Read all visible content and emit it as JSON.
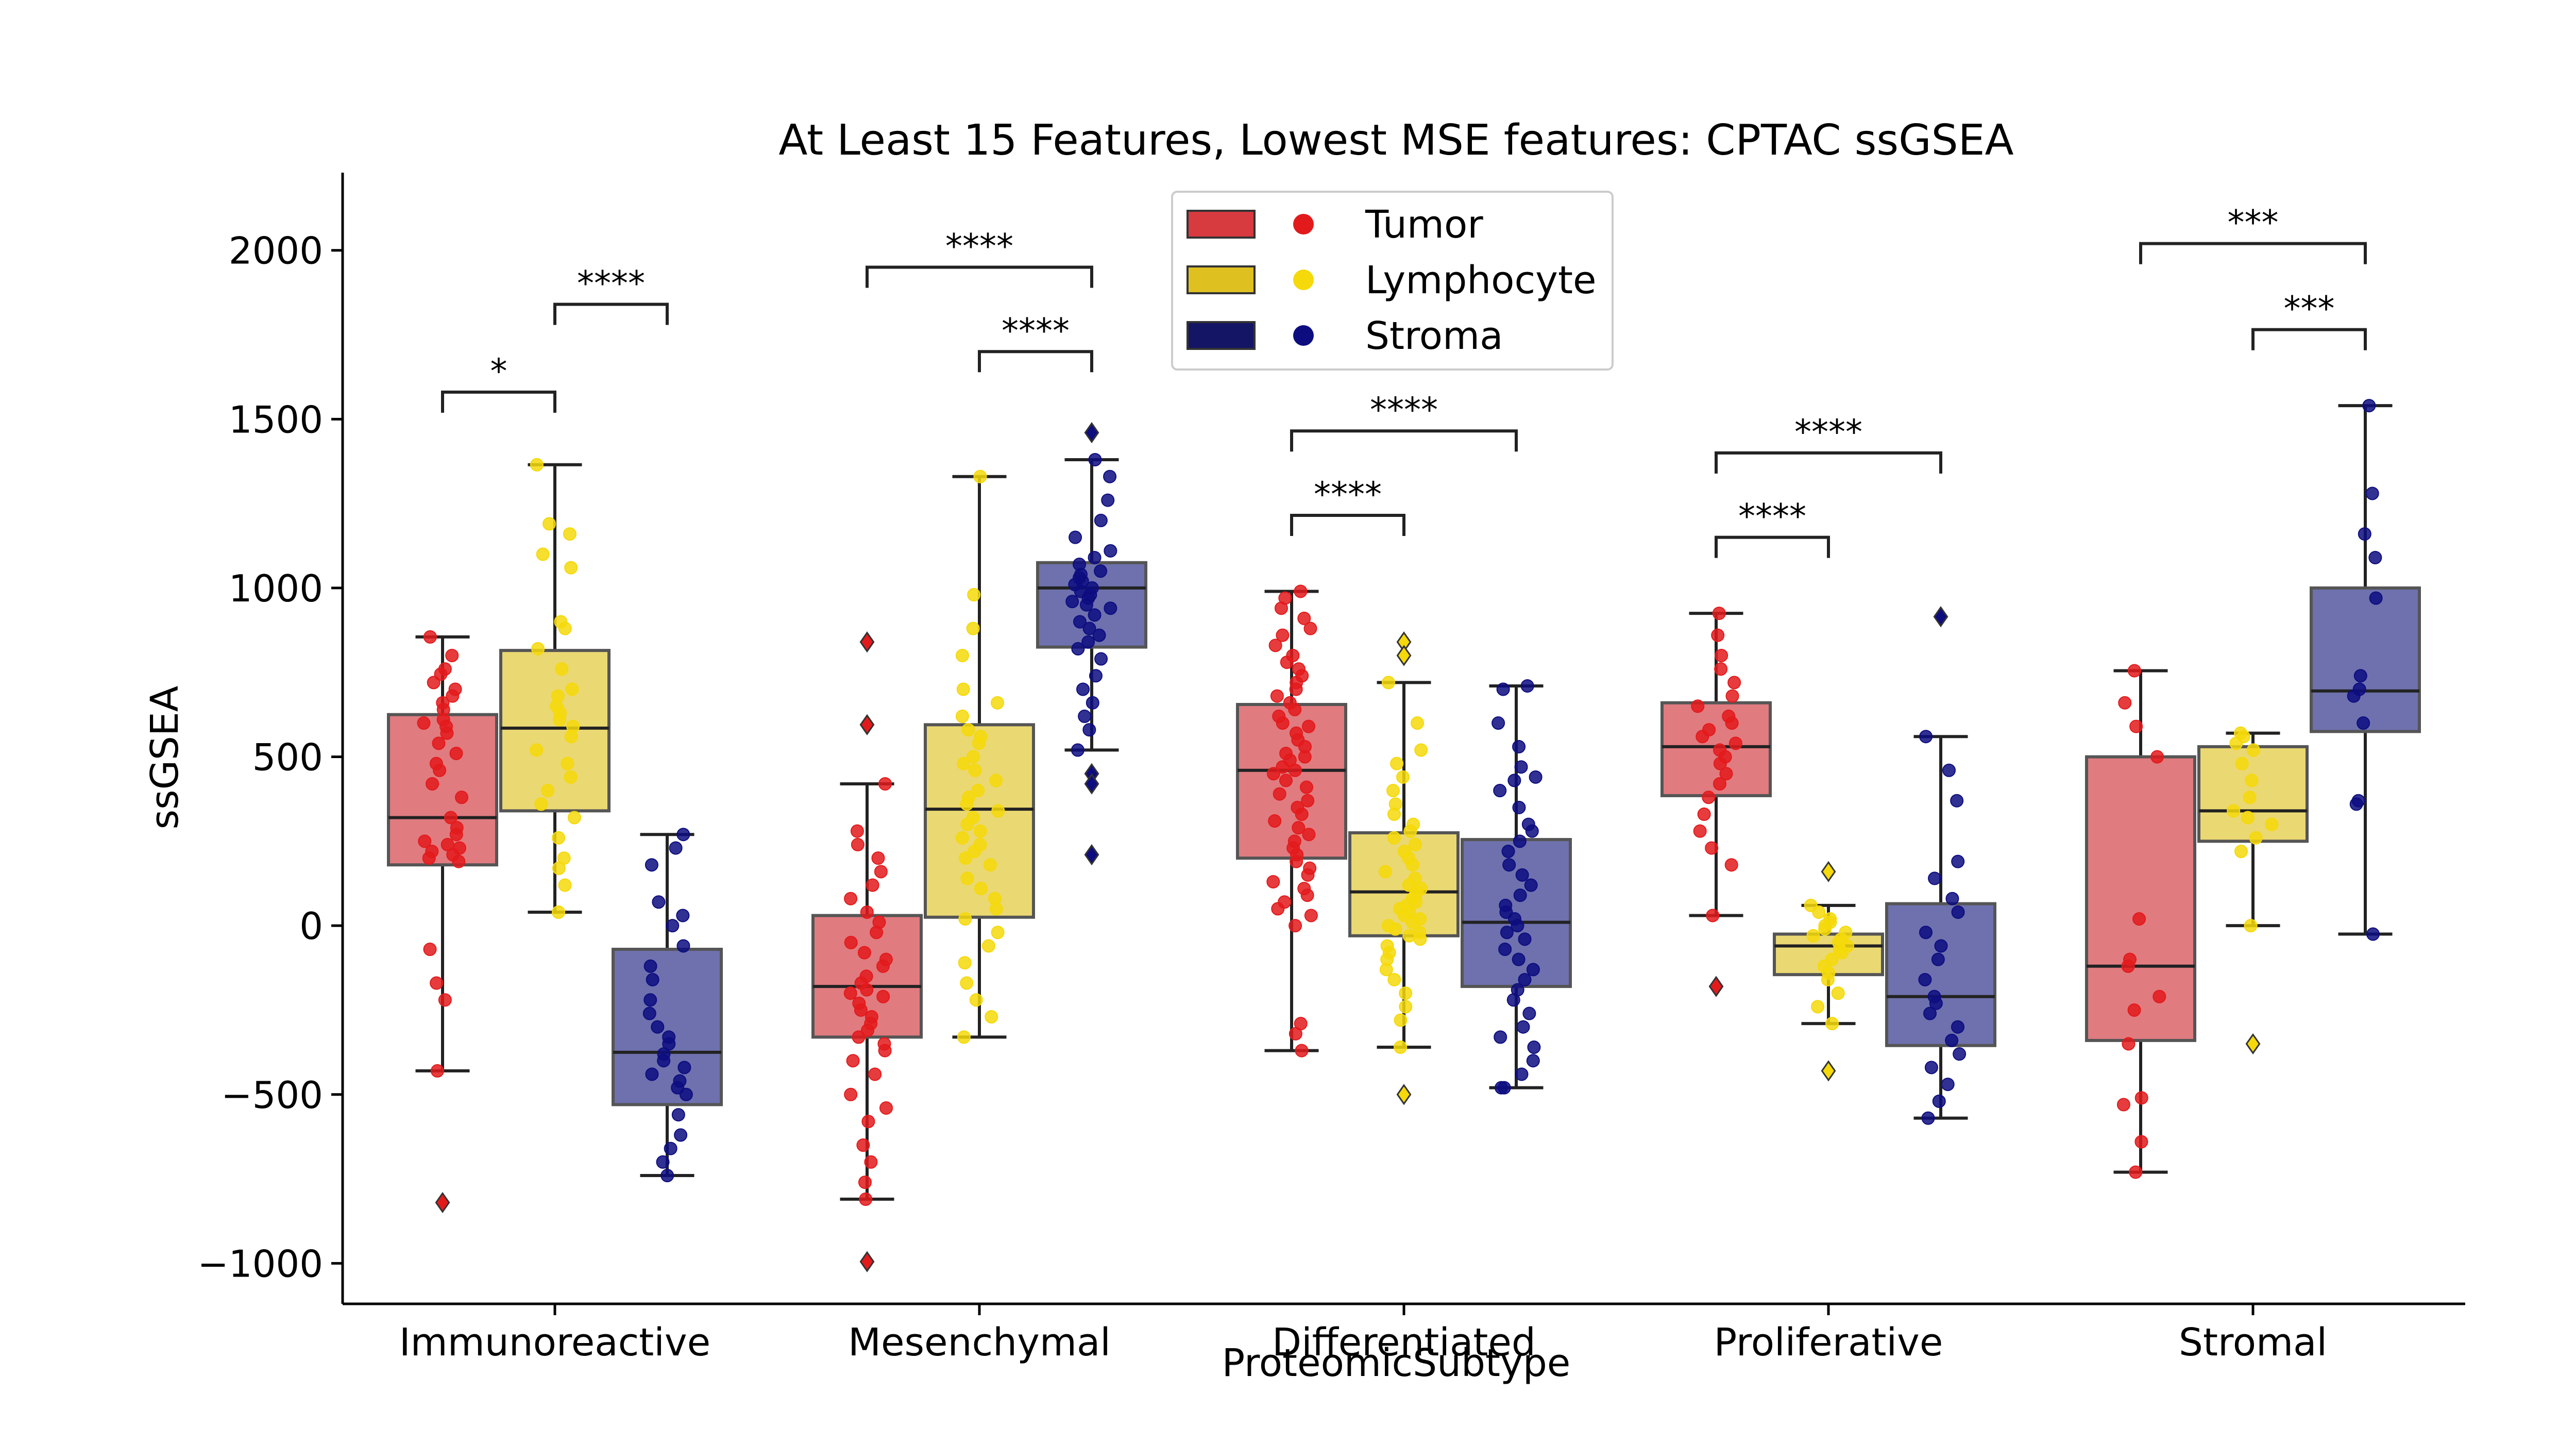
{
  "chart_data": {
    "type": "box",
    "title": "At Least 15 Features, Lowest MSE features: CPTAC ssGSEA",
    "xlabel": "ProteomicSubtype",
    "ylabel": "ssGSEA",
    "ylim": [
      -1120,
      2230
    ],
    "yticks": [
      -1000,
      -500,
      0,
      500,
      1000,
      1500,
      2000
    ],
    "ytick_labels": [
      "−1000",
      "−500",
      "0",
      "500",
      "1000",
      "1500",
      "2000"
    ],
    "categories": [
      "Immunoreactive",
      "Mesenchymal",
      "Differentiated",
      "Proliferative",
      "Stromal"
    ],
    "legend": {
      "placement": "upper-center",
      "entries": [
        {
          "name": "Tumor",
          "box_color": "#d73a3f",
          "dot_color": "#e31a1c"
        },
        {
          "name": "Lymphocyte",
          "box_color": "#dfc021",
          "dot_color": "#f5d90a"
        },
        {
          "name": "Stroma",
          "box_color": "#141565",
          "dot_color": "#0d0d80"
        }
      ]
    },
    "series": [
      {
        "name": "Tumor",
        "box_fill": "#e07b80",
        "dot_color": "#e31a1c",
        "boxes": [
          {
            "q1": 180,
            "median": 320,
            "q3": 625,
            "lower": -430,
            "upper": 855,
            "outliers": [
              -820
            ],
            "points": [
              855,
              800,
              760,
              745,
              720,
              700,
              680,
              660,
              640,
              610,
              600,
              590,
              570,
              540,
              510,
              480,
              460,
              420,
              380,
              320,
              290,
              270,
              250,
              240,
              230,
              220,
              210,
              200,
              190,
              -70,
              -170,
              -220,
              -430
            ]
          },
          {
            "q1": -330,
            "median": -180,
            "q3": 30,
            "lower": -810,
            "upper": 420,
            "outliers": [
              840,
              595,
              -995
            ],
            "points": [
              420,
              280,
              240,
              200,
              160,
              120,
              80,
              40,
              10,
              -20,
              -50,
              -80,
              -100,
              -120,
              -150,
              -170,
              -190,
              -200,
              -210,
              -230,
              -250,
              -270,
              -290,
              -310,
              -330,
              -350,
              -370,
              -400,
              -440,
              -500,
              -540,
              -580,
              -650,
              -700,
              -760,
              -810
            ]
          },
          {
            "q1": 200,
            "median": 460,
            "q3": 655,
            "lower": -370,
            "upper": 990,
            "outliers": [],
            "points": [
              990,
              970,
              940,
              910,
              880,
              860,
              830,
              800,
              780,
              760,
              740,
              720,
              700,
              680,
              660,
              640,
              620,
              600,
              590,
              570,
              550,
              530,
              510,
              500,
              490,
              470,
              460,
              450,
              430,
              410,
              390,
              370,
              350,
              330,
              310,
              290,
              270,
              250,
              230,
              210,
              190,
              170,
              150,
              130,
              110,
              90,
              70,
              50,
              30,
              0,
              -290,
              -320,
              -370
            ]
          },
          {
            "q1": 385,
            "median": 530,
            "q3": 660,
            "lower": 30,
            "upper": 925,
            "outliers": [
              -180
            ],
            "points": [
              925,
              860,
              800,
              760,
              720,
              680,
              650,
              620,
              600,
              580,
              560,
              540,
              520,
              500,
              480,
              450,
              420,
              380,
              330,
              280,
              230,
              180,
              30
            ]
          },
          {
            "q1": -340,
            "median": -120,
            "q3": 500,
            "lower": -730,
            "upper": 755,
            "outliers": [],
            "points": [
              755,
              660,
              590,
              500,
              20,
              -100,
              -120,
              -210,
              -250,
              -350,
              -510,
              -530,
              -640,
              -730
            ]
          }
        ]
      },
      {
        "name": "Lymphocyte",
        "box_fill": "#ead873",
        "dot_color": "#f5d90a",
        "boxes": [
          {
            "q1": 340,
            "median": 585,
            "q3": 815,
            "lower": 40,
            "upper": 1365,
            "outliers": [],
            "points": [
              1365,
              1190,
              1160,
              1100,
              1060,
              900,
              880,
              820,
              760,
              700,
              680,
              650,
              630,
              610,
              590,
              560,
              520,
              480,
              440,
              400,
              360,
              320,
              260,
              200,
              170,
              120,
              40
            ]
          },
          {
            "q1": 25,
            "median": 345,
            "q3": 595,
            "lower": -330,
            "upper": 1330,
            "outliers": [],
            "points": [
              1330,
              980,
              880,
              800,
              700,
              660,
              620,
              580,
              560,
              540,
              500,
              480,
              460,
              430,
              400,
              380,
              360,
              340,
              320,
              300,
              280,
              260,
              240,
              220,
              200,
              180,
              140,
              110,
              80,
              50,
              20,
              -20,
              -60,
              -110,
              -170,
              -220,
              -270,
              -330
            ]
          },
          {
            "q1": -30,
            "median": 100,
            "q3": 275,
            "lower": -360,
            "upper": 720,
            "outliers": [
              840,
              800,
              -500
            ],
            "points": [
              720,
              600,
              520,
              480,
              440,
              400,
              360,
              330,
              300,
              280,
              260,
              240,
              220,
              200,
              180,
              160,
              140,
              120,
              110,
              100,
              90,
              80,
              70,
              60,
              50,
              40,
              30,
              20,
              10,
              0,
              -10,
              -20,
              -30,
              -40,
              -60,
              -80,
              -100,
              -130,
              -160,
              -200,
              -240,
              -280,
              -360
            ]
          },
          {
            "q1": -145,
            "median": -60,
            "q3": -25,
            "lower": -290,
            "upper": 60,
            "outliers": [
              160,
              -430
            ],
            "points": [
              60,
              40,
              20,
              10,
              0,
              -10,
              -20,
              -30,
              -40,
              -50,
              -60,
              -70,
              -80,
              -100,
              -120,
              -140,
              -160,
              -200,
              -240,
              -290
            ]
          },
          {
            "q1": 250,
            "median": 340,
            "q3": 530,
            "lower": 0,
            "upper": 570,
            "outliers": [
              -350
            ],
            "points": [
              570,
              560,
              540,
              520,
              480,
              430,
              380,
              340,
              320,
              300,
              260,
              220,
              0
            ]
          }
        ]
      },
      {
        "name": "Stroma",
        "box_fill": "#6e71ad",
        "dot_color": "#0d0d80",
        "boxes": [
          {
            "q1": -530,
            "median": -375,
            "q3": -70,
            "lower": -740,
            "upper": 270,
            "outliers": [],
            "points": [
              270,
              230,
              180,
              70,
              30,
              0,
              -60,
              -120,
              -160,
              -220,
              -260,
              -300,
              -330,
              -350,
              -380,
              -400,
              -420,
              -440,
              -460,
              -480,
              -500,
              -560,
              -620,
              -660,
              -700,
              -740
            ]
          },
          {
            "q1": 825,
            "median": 1000,
            "q3": 1075,
            "lower": 520,
            "upper": 1380,
            "outliers": [
              1460,
              450,
              420,
              210
            ],
            "points": [
              1380,
              1330,
              1260,
              1200,
              1150,
              1110,
              1090,
              1070,
              1050,
              1040,
              1030,
              1020,
              1010,
              1000,
              990,
              980,
              970,
              960,
              950,
              940,
              920,
              900,
              880,
              860,
              840,
              820,
              790,
              740,
              700,
              660,
              620,
              580,
              520
            ]
          },
          {
            "q1": -180,
            "median": 10,
            "q3": 255,
            "lower": -480,
            "upper": 710,
            "outliers": [],
            "points": [
              710,
              700,
              600,
              530,
              470,
              440,
              430,
              400,
              350,
              300,
              280,
              250,
              220,
              180,
              150,
              120,
              90,
              60,
              40,
              20,
              0,
              -20,
              -40,
              -70,
              -100,
              -130,
              -160,
              -190,
              -220,
              -260,
              -300,
              -330,
              -360,
              -400,
              -440,
              -480,
              -480
            ]
          },
          {
            "q1": -355,
            "median": -210,
            "q3": 65,
            "lower": -570,
            "upper": 560,
            "outliers": [
              915
            ],
            "points": [
              560,
              460,
              370,
              190,
              140,
              80,
              40,
              -20,
              -60,
              -100,
              -160,
              -210,
              -230,
              -260,
              -300,
              -340,
              -380,
              -420,
              -470,
              -520,
              -570
            ]
          },
          {
            "q1": 575,
            "median": 695,
            "q3": 1000,
            "lower": -25,
            "upper": 1540,
            "outliers": [],
            "points": [
              1540,
              1280,
              1160,
              1090,
              970,
              740,
              700,
              680,
              600,
              370,
              360,
              -25
            ]
          }
        ]
      }
    ],
    "annotations": [
      {
        "category": 0,
        "from": "Tumor",
        "to": "Lymphocyte",
        "label": "*",
        "y": 1580
      },
      {
        "category": 0,
        "from": "Lymphocyte",
        "to": "Stroma",
        "label": "****",
        "y": 1840
      },
      {
        "category": 1,
        "from": "Tumor",
        "to": "Stroma",
        "label": "****",
        "y": 1950
      },
      {
        "category": 1,
        "from": "Lymphocyte",
        "to": "Stroma",
        "label": "****",
        "y": 1700
      },
      {
        "category": 2,
        "from": "Tumor",
        "to": "Stroma",
        "label": "****",
        "y": 1465
      },
      {
        "category": 2,
        "from": "Tumor",
        "to": "Lymphocyte",
        "label": "****",
        "y": 1215
      },
      {
        "category": 3,
        "from": "Tumor",
        "to": "Stroma",
        "label": "****",
        "y": 1400
      },
      {
        "category": 3,
        "from": "Tumor",
        "to": "Lymphocyte",
        "label": "****",
        "y": 1150
      },
      {
        "category": 4,
        "from": "Tumor",
        "to": "Stroma",
        "label": "***",
        "y": 2020
      },
      {
        "category": 4,
        "from": "Lymphocyte",
        "to": "Stroma",
        "label": "***",
        "y": 1765
      }
    ],
    "grid": false
  }
}
